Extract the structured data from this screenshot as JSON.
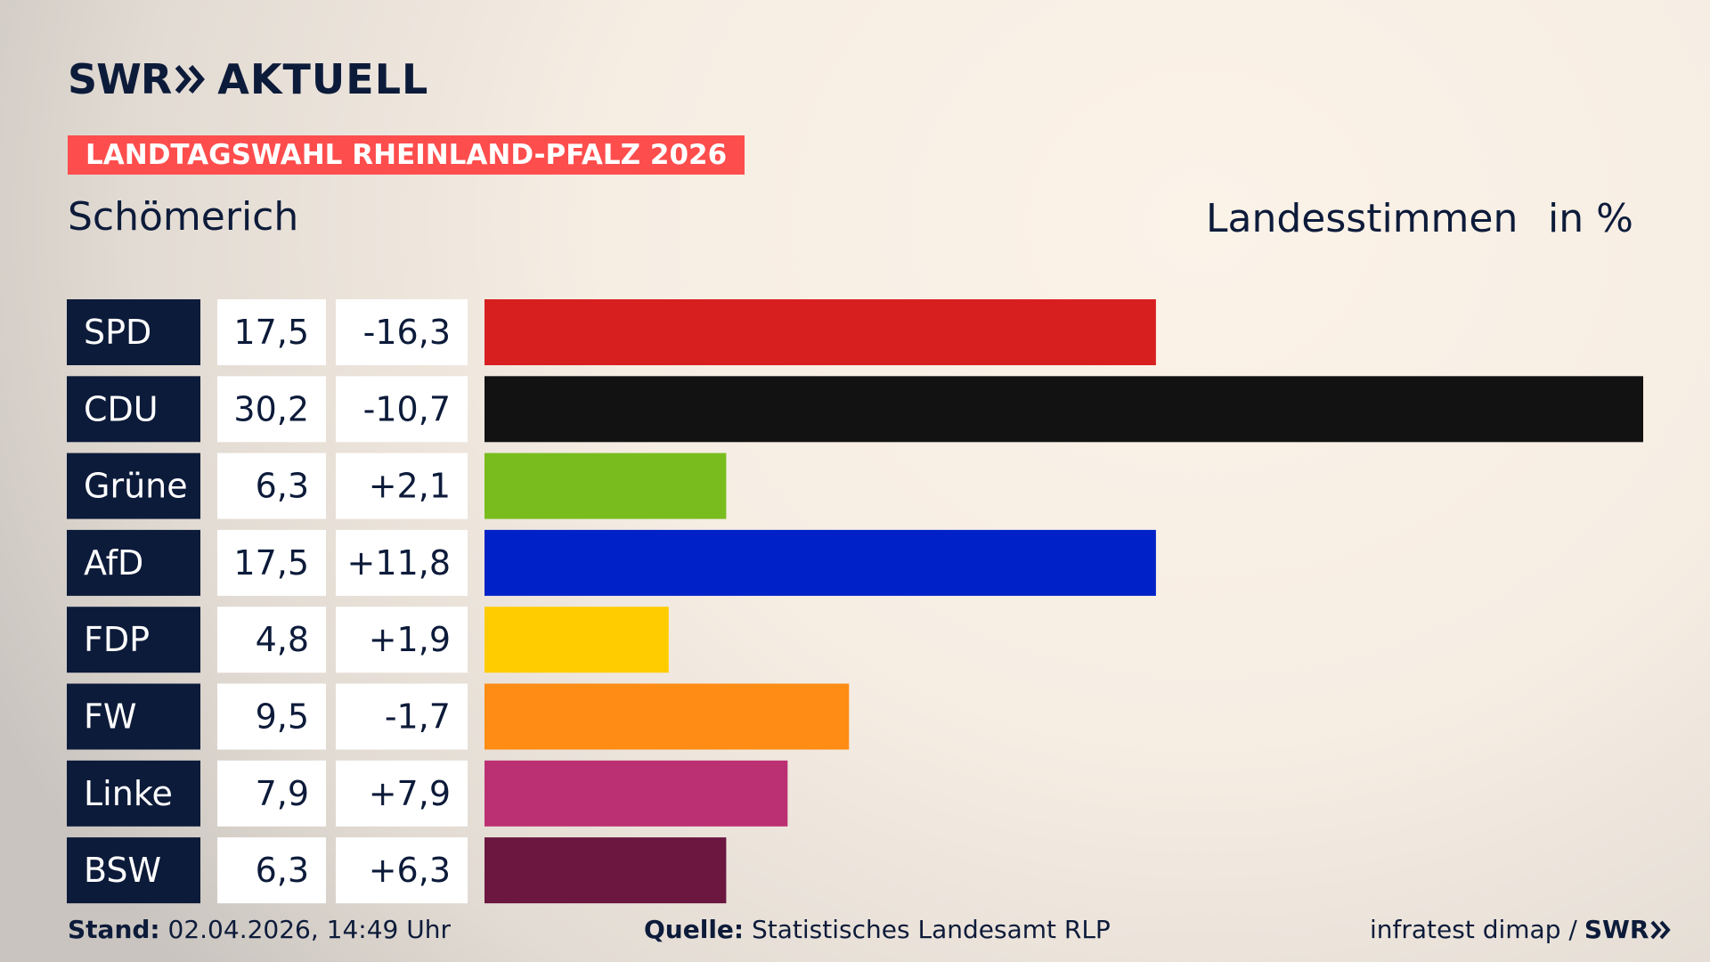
{
  "brand": {
    "name": "SWR",
    "section": "AKTUELL"
  },
  "banner": "LANDTAGSWAHL RHEINLAND-PFALZ 2026",
  "location": "Schömerich",
  "header": {
    "metric": "Landesstimmen",
    "unit": "in %"
  },
  "colors": {
    "navy": "#0d1b3a",
    "banner": "#fe4d4d"
  },
  "chart_data": {
    "type": "bar",
    "orientation": "horizontal",
    "categories": [
      "SPD",
      "CDU",
      "Grüne",
      "AfD",
      "FDP",
      "FW",
      "Linke",
      "BSW"
    ],
    "series": [
      {
        "values": [
          17.5,
          30.2,
          6.3,
          17.5,
          4.8,
          9.5,
          7.9,
          6.3
        ]
      }
    ],
    "value_labels": [
      "17,5",
      "30,2",
      "6,3",
      "17,5",
      "4,8",
      "9,5",
      "7,9",
      "6,3"
    ],
    "change_labels": [
      "-16,3",
      "-10,7",
      "+2,1",
      "+11,8",
      "+1,9",
      "-1,7",
      "+7,9",
      "+6,3"
    ],
    "changes": [
      -16.3,
      -10.7,
      2.1,
      11.8,
      1.9,
      -1.7,
      7.9,
      6.3
    ],
    "bar_colors": [
      "#d81f1f",
      "#121212",
      "#78bd1d",
      "#0021c8",
      "#ffcc00",
      "#ff8c14",
      "#bb3072",
      "#6b1740"
    ],
    "xlim": [
      0,
      30.2
    ],
    "grid": false,
    "legend": "none"
  },
  "footer": {
    "stand_label": "Stand:",
    "stand_value": "02.04.2026, 14:49 Uhr",
    "source_label": "Quelle:",
    "source_value": "Statistisches Landesamt RLP",
    "credit": "infratest dimap /",
    "credit_brand": "SWR"
  }
}
